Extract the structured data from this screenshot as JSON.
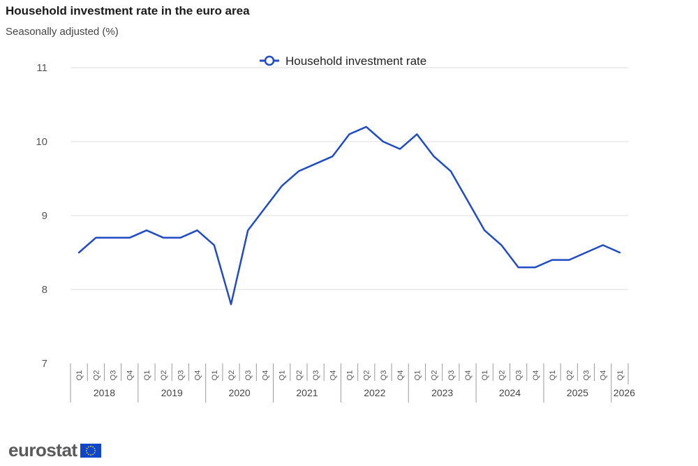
{
  "chart_data": {
    "type": "line",
    "title": "Household investment rate in the euro area",
    "subtitle": "Seasonally adjusted (%)",
    "xlabel": "",
    "ylabel": "",
    "ylim": [
      7,
      11
    ],
    "yticks": [
      7,
      8,
      9,
      10,
      11
    ],
    "grid": true,
    "legend_position": "top-center",
    "years": [
      "2018",
      "2019",
      "2020",
      "2021",
      "2022",
      "2023",
      "2024",
      "2025",
      "2026"
    ],
    "quarter_labels": [
      "Q1",
      "Q2",
      "Q3",
      "Q4"
    ],
    "x": [
      "2018-Q1",
      "2018-Q2",
      "2018-Q3",
      "2018-Q4",
      "2019-Q1",
      "2019-Q2",
      "2019-Q3",
      "2019-Q4",
      "2020-Q1",
      "2020-Q2",
      "2020-Q3",
      "2020-Q4",
      "2021-Q1",
      "2021-Q2",
      "2021-Q3",
      "2021-Q4",
      "2022-Q1",
      "2022-Q2",
      "2022-Q3",
      "2022-Q4",
      "2023-Q1",
      "2023-Q2",
      "2023-Q3",
      "2023-Q4",
      "2024-Q1",
      "2024-Q2",
      "2024-Q3",
      "2024-Q4",
      "2025-Q1",
      "2025-Q2",
      "2025-Q3",
      "2025-Q4",
      "2026-Q1"
    ],
    "series": [
      {
        "name": "Household investment rate",
        "color": "#1f4bc4",
        "values": [
          8.5,
          8.7,
          8.7,
          8.7,
          8.8,
          8.7,
          8.7,
          8.8,
          8.6,
          7.8,
          8.8,
          9.1,
          9.4,
          9.6,
          9.7,
          9.8,
          10.1,
          10.2,
          10.0,
          9.9,
          10.1,
          9.8,
          9.6,
          9.2,
          8.8,
          8.6,
          8.3,
          8.3,
          8.4,
          8.4,
          8.5,
          8.6,
          8.5
        ]
      }
    ]
  },
  "branding": {
    "logo_text": "eurostat",
    "flag_color": "#0e47cb",
    "star_color": "#ffdd00"
  }
}
